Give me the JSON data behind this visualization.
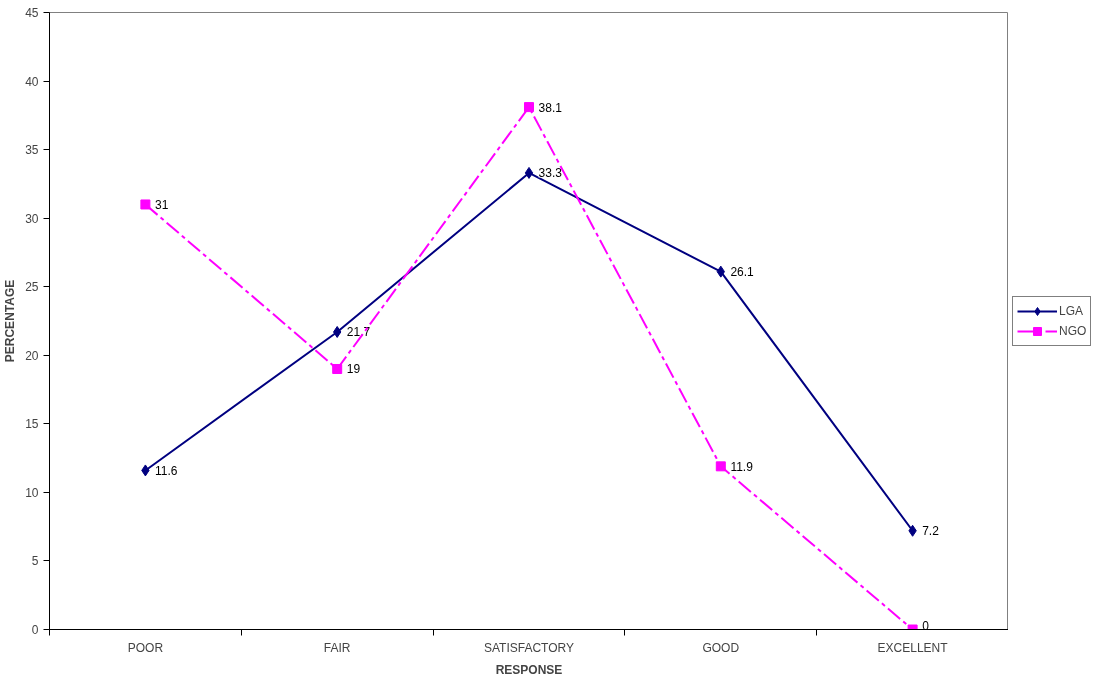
{
  "chart_data": {
    "type": "line",
    "xlabel": "RESPONSE",
    "ylabel": "PERCENTAGE",
    "categories": [
      "POOR",
      "FAIR",
      "SATISFACTORY",
      "GOOD",
      "EXCELLENT"
    ],
    "series": [
      {
        "name": "LGA",
        "color": "#000080",
        "values": [
          11.6,
          21.7,
          33.3,
          26.1,
          7.2
        ],
        "marker": "diamond",
        "line_style": "solid"
      },
      {
        "name": "NGO",
        "color": "#ff00ff",
        "values": [
          31,
          19,
          38.1,
          11.9,
          0
        ],
        "marker": "square",
        "line_style": "dashdot"
      }
    ],
    "ylim": [
      0,
      45
    ],
    "yticks": [
      0,
      5,
      10,
      15,
      20,
      25,
      30,
      35,
      40,
      45
    ],
    "grid": false,
    "legend": "right",
    "data_labels": true
  }
}
